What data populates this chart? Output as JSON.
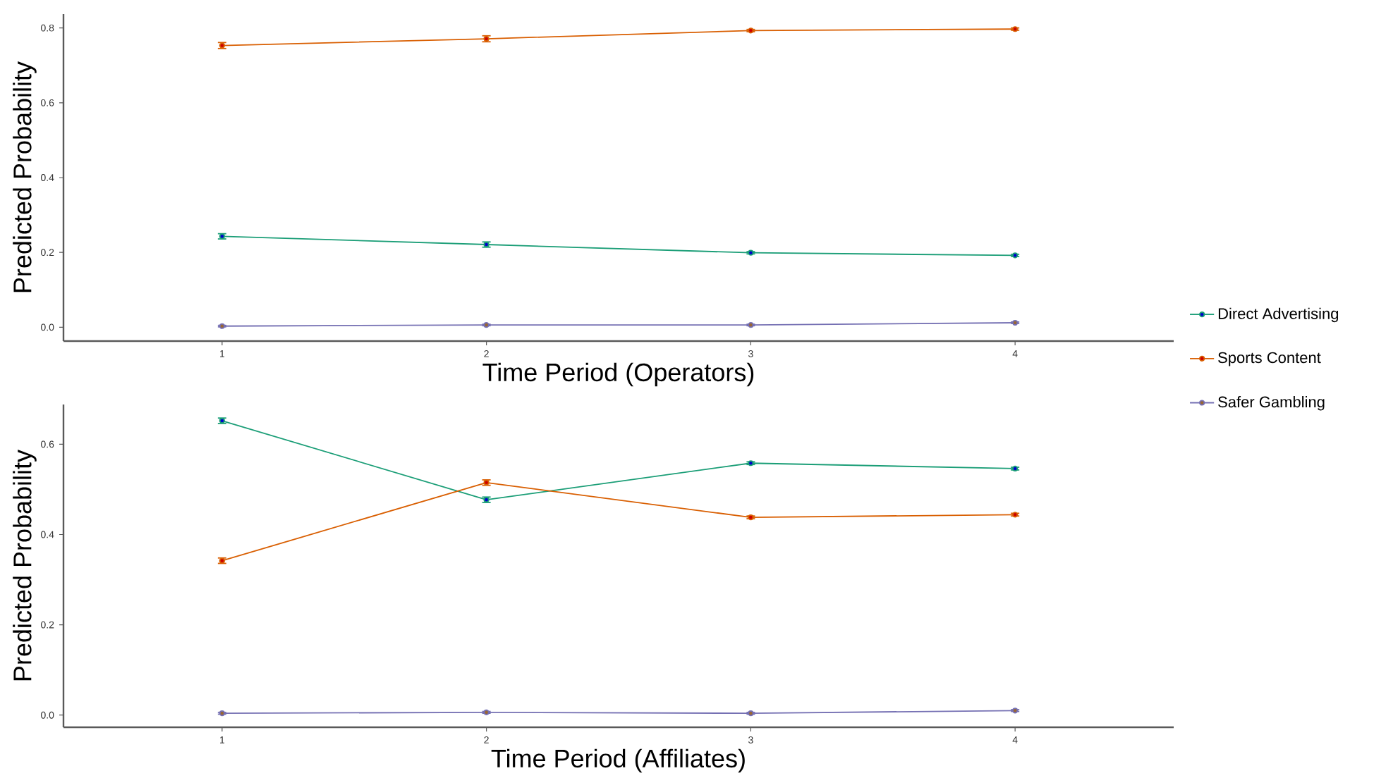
{
  "chart_data": [
    {
      "type": "line",
      "xlabel": "Time Period (Operators)",
      "ylabel": "Predicted Probability",
      "x": [
        1,
        2,
        3,
        4
      ],
      "xlim": [
        0.4,
        4.6
      ],
      "xticks": [
        1,
        2,
        3,
        4
      ],
      "ylim": [
        -0.037,
        0.837
      ],
      "yticks": [
        {
          "value": 0,
          "label": "0.0"
        },
        0.2,
        0.4,
        0.6,
        0.8
      ],
      "grid": false,
      "legend": "right",
      "marker": "circle",
      "line_style": "solid",
      "series": [
        {
          "name": "Direct Advertising",
          "color": "#1b9e77",
          "values": [
            0.243,
            0.221,
            0.199,
            0.192
          ],
          "errors": [
            0.007,
            0.007,
            0.003,
            0.003
          ]
        },
        {
          "name": "Sports Content",
          "color": "#d95f02",
          "values": [
            0.753,
            0.771,
            0.793,
            0.797
          ],
          "errors": [
            0.008,
            0.008,
            0.003,
            0.003
          ]
        },
        {
          "name": "Safer Gambling",
          "color": "#7570b3",
          "values": [
            0.003,
            0.006,
            0.006,
            0.012
          ],
          "errors": [
            0.002,
            0.002,
            0.002,
            0.002
          ]
        }
      ]
    },
    {
      "type": "line",
      "xlabel": "Time Period (Affiliates)",
      "ylabel": "Predicted Probability",
      "x": [
        1,
        2,
        3,
        4
      ],
      "xlim": [
        0.4,
        4.6
      ],
      "xticks": [
        1,
        2,
        3,
        4
      ],
      "ylim": [
        -0.027,
        0.688
      ],
      "yticks": [
        {
          "value": 0,
          "label": "0.0"
        },
        0.2,
        0.4,
        0.6
      ],
      "grid": false,
      "marker": "circle",
      "line_style": "solid",
      "series": [
        {
          "color": "#1b9e77",
          "values": [
            0.652,
            0.477,
            0.558,
            0.546
          ],
          "errors": [
            0.006,
            0.006,
            0.003,
            0.003
          ]
        },
        {
          "color": "#d95f02",
          "values": [
            0.342,
            0.515,
            0.438,
            0.444
          ],
          "errors": [
            0.006,
            0.006,
            0.003,
            0.003
          ]
        },
        {
          "color": "#7570b3",
          "values": [
            0.004,
            0.006,
            0.004,
            0.01
          ],
          "errors": [
            0.002,
            0.002,
            0.002,
            0.002
          ]
        }
      ]
    }
  ]
}
